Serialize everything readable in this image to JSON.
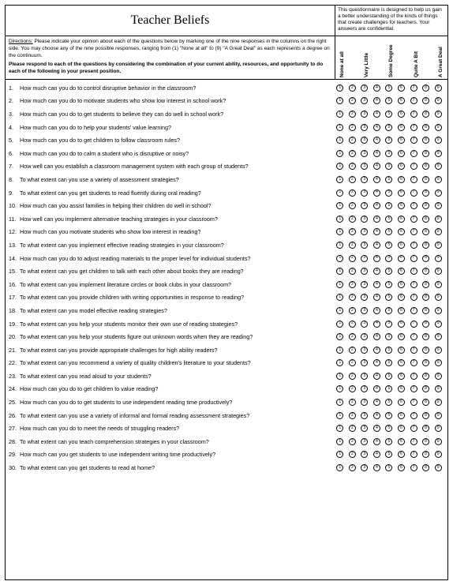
{
  "title": "Teacher Beliefs",
  "header_note": "This questionnaire is designed to help us gain a better understanding of the kinds of things that create challenges for teachers. Your answers are confidential.",
  "directions_label": "Directions:",
  "directions_body": " Please indicate your opinion about each of the questions below by marking one of the nine responses in the columns on the right side. You may choose any of the nine possible responses, ranging from (1) \"None at all\" to (9) \"A Great Deal\" as each represents a degree on the continuum.",
  "directions_bold": "Please respond to each of the questions by considering the combination of your current ability, resources, and opportunity to do each of the following in your present position.",
  "scale_labels": [
    "None at all",
    "Very Little",
    "Some Degree",
    "Quite A Bit",
    "A Great Deal"
  ],
  "bubble_nums": [
    "1",
    "2",
    "3",
    "4",
    "5",
    "6",
    "7",
    "8",
    "9"
  ],
  "questions": [
    "How much can you do to control disruptive behavior in the classroom?",
    "How much can you do to motivate students who show low interest in school work?",
    "How much can you do to get students to believe they can do well in school work?",
    "How much can you do to help your students' value learning?",
    "How much can you do to get children to follow classroom rules?",
    "How much can you do to calm a student who is disruptive or noisy?",
    "How well can you establish a classroom management system with each group of students?",
    "To what extent can you use a variety of assessment strategies?",
    "To what extent can you get students to read fluently during oral reading?",
    "How much can you assist families in helping their children do well in school?",
    "How well can you implement alternative teaching strategies in your classroom?",
    "How much can you motivate students who show low interest in reading?",
    "To what extent can you implement effective reading strategies in your classroom?",
    "How much can you do to adjust reading materials to the proper level for individual students?",
    "To what extent can you get children to talk with each other about books they are reading?",
    "To what extent can you implement literature circles or book clubs in your classroom?",
    "To what extent can you provide children with writing opportunities in response to reading?",
    "To what extent can you model effective reading strategies?",
    "To what extent can you help your students monitor their own use of reading strategies?",
    "To what extent can you help your students figure out unknown words when they are reading?",
    "To what extent can you provide appropriate challenges for high ability readers?",
    "To what extent can you recommend a variety of quality children's literature to your students?",
    "To what extent can you read aloud to your students?",
    "How much can you do to get children to value reading?",
    "How much can you do to get students to use independent reading time productively?",
    "To what extent can you use a variety of informal and formal reading assessment strategies?",
    "How much can you do to meet the needs of struggling readers?",
    "To what extent can you teach comprehension strategies in your classroom?",
    "How much can you get students to use independent writing time productively?",
    "To what extent can you get students to read at home?"
  ]
}
